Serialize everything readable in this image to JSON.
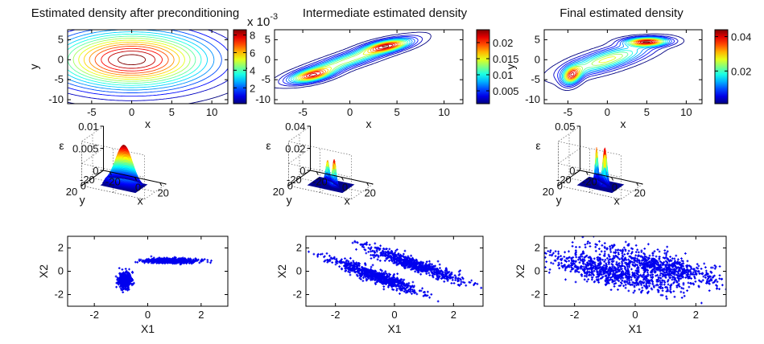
{
  "figure": {
    "titles": [
      "Estimated density after preconditioning",
      "Intermediate estimated density",
      "Final estimated density"
    ],
    "colorbar_exponent": "x 10",
    "colorbar_exponent_power": "-3"
  },
  "chart_data": [
    {
      "id": "p1",
      "type": "contour",
      "title": "Estimated density after preconditioning",
      "xlabel": "x",
      "ylabel": "y",
      "xlim": [
        -8,
        12
      ],
      "ylim": [
        -11,
        7.5
      ],
      "xticks": [
        -5,
        0,
        5,
        10
      ],
      "yticks": [
        -10,
        -5,
        0,
        5
      ],
      "levels": 16,
      "colormap": "jet",
      "components": [
        {
          "mx": 0,
          "my": 0,
          "sx": 6.5,
          "sy": 4.8,
          "rho": 0,
          "w": 1
        }
      ],
      "colorbar": {
        "ticks": [
          2,
          4,
          6,
          8
        ],
        "lim": [
          0.2,
          8.6
        ],
        "exponent": "x 10^-3"
      }
    },
    {
      "id": "p2",
      "type": "contour",
      "title": "Intermediate estimated density",
      "xlabel": "x",
      "ylabel": "y",
      "xlim": [
        -8,
        12
      ],
      "ylim": [
        -11,
        7.5
      ],
      "xticks": [
        -5,
        0,
        5,
        10
      ],
      "yticks": [
        -10,
        -5,
        0,
        5
      ],
      "levels": 16,
      "colormap": "jet",
      "components": [
        {
          "mx": -4,
          "my": -4,
          "sx": 1.5,
          "sy": 1.2,
          "rho": 0.55,
          "w": 0.5
        },
        {
          "mx": 4,
          "my": 3.5,
          "sx": 1.6,
          "sy": 1.1,
          "rho": 0.55,
          "w": 0.5
        },
        {
          "mx": 0,
          "my": 0,
          "sx": 3.6,
          "sy": 2.9,
          "rho": 0.9,
          "w": 0.4
        }
      ],
      "colorbar": {
        "ticks": [
          0.005,
          0.01,
          0.015,
          0.02
        ],
        "lim": [
          0.001,
          0.024
        ]
      }
    },
    {
      "id": "p3",
      "type": "contour",
      "title": "Final estimated density",
      "xlabel": "x",
      "ylabel": "y",
      "xlim": [
        -8,
        12
      ],
      "ylim": [
        -11,
        7.5
      ],
      "xticks": [
        -5,
        0,
        5,
        10
      ],
      "yticks": [
        -10,
        -5,
        0,
        5
      ],
      "levels": 16,
      "colormap": "jet",
      "components": [
        {
          "mx": -4.5,
          "my": -4,
          "sx": 0.8,
          "sy": 1.5,
          "rho": 0.3,
          "w": 0.3
        },
        {
          "mx": 5,
          "my": 4.5,
          "sx": 1.8,
          "sy": 0.7,
          "rho": 0.1,
          "w": 0.35
        },
        {
          "mx": 0,
          "my": 0,
          "sx": 3.5,
          "sy": 2.5,
          "rho": 0.75,
          "w": 0.25
        }
      ],
      "colorbar": {
        "ticks": [
          0.02,
          0.04
        ],
        "lim": [
          0.001,
          0.044
        ]
      }
    },
    {
      "id": "s1",
      "type": "surface",
      "zlabel": "ε",
      "zlim": [
        0,
        0.01
      ],
      "zticks": [
        "0",
        "0.005",
        "0.01"
      ],
      "xticks": [
        "-20",
        "0",
        "20"
      ],
      "yticks": [
        "20",
        "0",
        "-20"
      ],
      "xlabel": "x",
      "ylabel": "y",
      "peak_height": 0.009
    },
    {
      "id": "s2",
      "type": "surface",
      "zlabel": "ε",
      "zlim": [
        0,
        0.04
      ],
      "zticks": [
        "0",
        "0.02",
        "0.04"
      ],
      "xticks": [
        "-20",
        "0",
        "20"
      ],
      "yticks": [
        "20",
        "0",
        "-20"
      ],
      "xlabel": "x",
      "ylabel": "y",
      "peak_height": 0.025
    },
    {
      "id": "s3",
      "type": "surface",
      "zlabel": "ε",
      "zlim": [
        0,
        0.05
      ],
      "zticks": [
        "0",
        "0.05"
      ],
      "xticks": [
        "-20",
        "0",
        "20"
      ],
      "yticks": [
        "20",
        "0",
        "-20"
      ],
      "xlabel": "x",
      "ylabel": "y",
      "peak_height": 0.045
    },
    {
      "id": "sc1",
      "type": "scatter",
      "xlabel": "X1",
      "ylabel": "X2",
      "xlim": [
        -3,
        3
      ],
      "ylim": [
        -3,
        3
      ],
      "xticks": [
        -2,
        0,
        2
      ],
      "yticks": [
        -2,
        0,
        2
      ],
      "marker_color": "#0000ee",
      "seed": 11,
      "n_points": 1100,
      "clusters": [
        {
          "mx": -0.85,
          "my": -0.75,
          "sx": 0.12,
          "sy": 0.35,
          "rho": 0,
          "n": 450
        },
        {
          "mx": 0.9,
          "my": 0.9,
          "sx": 0.48,
          "sy": 0.1,
          "rho": 0,
          "n": 650
        }
      ]
    },
    {
      "id": "sc2",
      "type": "scatter",
      "xlabel": "X1",
      "ylabel": "X2",
      "xlim": [
        -3,
        3
      ],
      "ylim": [
        -3,
        3
      ],
      "xticks": [
        -2,
        0,
        2
      ],
      "yticks": [
        -2,
        0,
        2
      ],
      "marker_color": "#0000ee",
      "seed": 23,
      "n_points": 1400,
      "clusters": [
        {
          "mx": -0.7,
          "my": -0.35,
          "sx": 0.75,
          "sy": 0.75,
          "rho": -0.93,
          "n": 700
        },
        {
          "mx": 0.7,
          "my": 0.55,
          "sx": 0.8,
          "sy": 0.75,
          "rho": -0.93,
          "n": 700
        }
      ]
    },
    {
      "id": "sc3",
      "type": "scatter",
      "xlabel": "X1",
      "ylabel": "X2",
      "xlim": [
        -3,
        3
      ],
      "ylim": [
        -3,
        3
      ],
      "xticks": [
        -2,
        0,
        2
      ],
      "yticks": [
        -2,
        0,
        2
      ],
      "marker_color": "#0000ee",
      "seed": 37,
      "n_points": 1500,
      "clusters": [
        {
          "mx": -0.8,
          "my": -0.1,
          "sx": 1.05,
          "sy": 0.85,
          "rho": -0.78,
          "n": 750
        },
        {
          "mx": 0.75,
          "my": 0.5,
          "sx": 1.05,
          "sy": 0.85,
          "rho": -0.78,
          "n": 750
        }
      ]
    }
  ]
}
